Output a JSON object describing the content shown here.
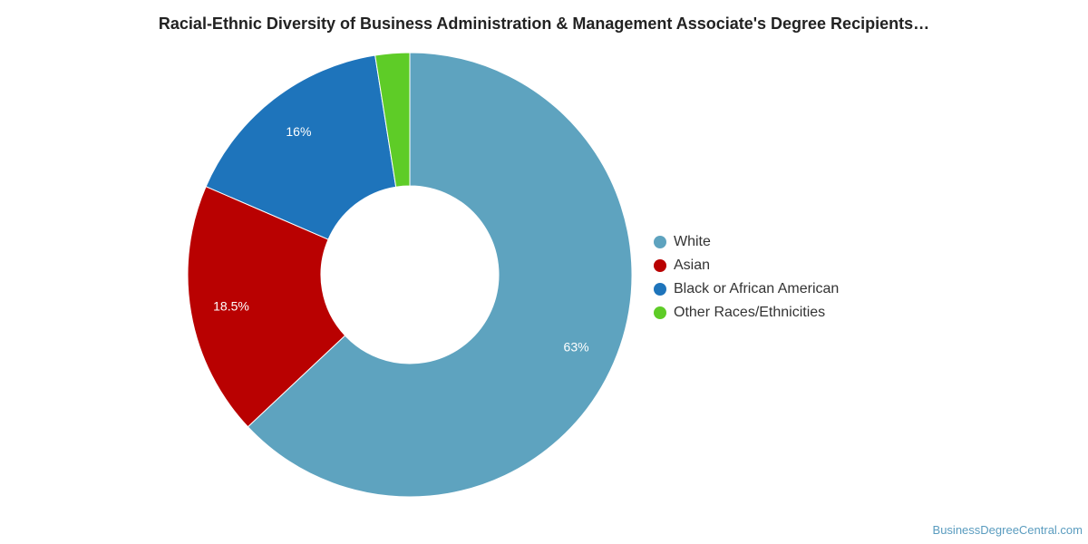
{
  "chart_data": {
    "type": "pie",
    "title": "Racial-Ethnic Diversity of Business Administration & Management Associate's Degree Recipients…",
    "donut": true,
    "legend_position": "right",
    "slices": [
      {
        "name": "White",
        "value": 63,
        "label": "63%",
        "color": "#5ea3bf"
      },
      {
        "name": "Asian",
        "value": 18.5,
        "label": "18.5%",
        "color": "#b90101"
      },
      {
        "name": "Black or African American",
        "value": 16,
        "label": "16%",
        "color": "#1e74bb"
      },
      {
        "name": "Other Races/Ethnicities",
        "value": 2.5,
        "label": "",
        "color": "#5ecc27"
      }
    ]
  },
  "watermark": "BusinessDegreeCentral.com"
}
